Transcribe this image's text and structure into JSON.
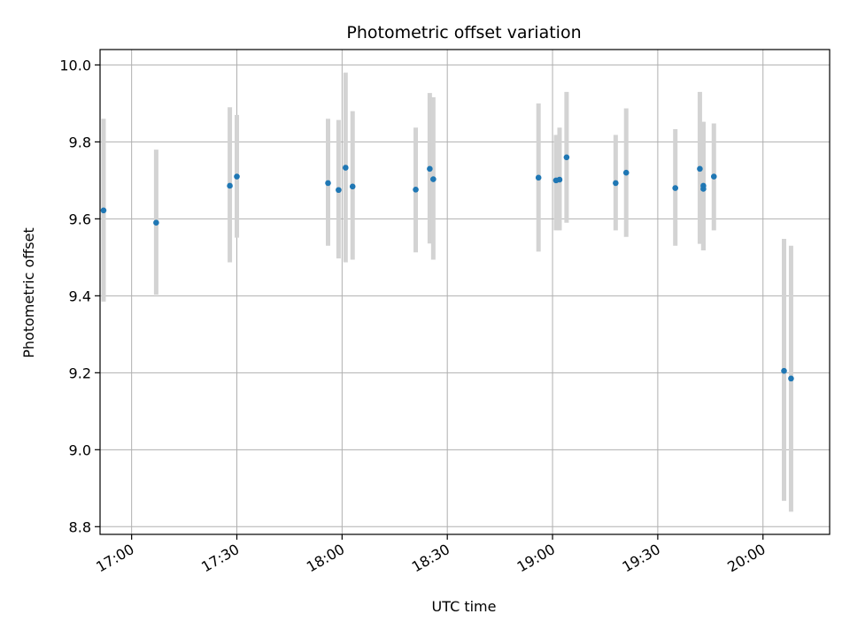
{
  "chart_data": {
    "type": "scatter",
    "title": "Photometric offset variation",
    "xlabel": "UTC time",
    "ylabel": "Photometric offset",
    "grid": true,
    "legend": "none",
    "x_ticks": [
      "17:00",
      "17:30",
      "18:00",
      "18:30",
      "19:00",
      "19:30",
      "20:00"
    ],
    "y_ticks": [
      8.8,
      9.0,
      9.2,
      9.4,
      9.6,
      9.8,
      10.0
    ],
    "xlim": [
      "16:51",
      "20:19"
    ],
    "ylim": [
      8.78,
      10.04
    ],
    "colors": {
      "point": "#1f77b4",
      "errorbar": "#d3d3d3",
      "grid": "#b0b0b0"
    },
    "points": [
      {
        "x": "16:52",
        "y": 9.622,
        "lo": 9.385,
        "hi": 9.86
      },
      {
        "x": "17:07",
        "y": 9.59,
        "lo": 9.403,
        "hi": 9.78
      },
      {
        "x": "17:28",
        "y": 9.686,
        "lo": 9.487,
        "hi": 9.89
      },
      {
        "x": "17:30",
        "y": 9.71,
        "lo": 9.551,
        "hi": 9.87
      },
      {
        "x": "17:56",
        "y": 9.693,
        "lo": 9.53,
        "hi": 9.86
      },
      {
        "x": "17:59",
        "y": 9.675,
        "lo": 9.497,
        "hi": 9.857
      },
      {
        "x": "18:01",
        "y": 9.733,
        "lo": 9.487,
        "hi": 9.98
      },
      {
        "x": "18:03",
        "y": 9.684,
        "lo": 9.494,
        "hi": 9.88
      },
      {
        "x": "18:21",
        "y": 9.676,
        "lo": 9.513,
        "hi": 9.837
      },
      {
        "x": "18:25",
        "y": 9.73,
        "lo": 9.536,
        "hi": 9.927
      },
      {
        "x": "18:26",
        "y": 9.703,
        "lo": 9.494,
        "hi": 9.916
      },
      {
        "x": "18:56",
        "y": 9.707,
        "lo": 9.515,
        "hi": 9.9
      },
      {
        "x": "19:01",
        "y": 9.7,
        "lo": 9.57,
        "hi": 9.818
      },
      {
        "x": "19:02",
        "y": 9.702,
        "lo": 9.57,
        "hi": 9.837
      },
      {
        "x": "19:04",
        "y": 9.76,
        "lo": 9.59,
        "hi": 9.93
      },
      {
        "x": "19:18",
        "y": 9.693,
        "lo": 9.57,
        "hi": 9.818
      },
      {
        "x": "19:21",
        "y": 9.72,
        "lo": 9.553,
        "hi": 9.887
      },
      {
        "x": "19:35",
        "y": 9.68,
        "lo": 9.53,
        "hi": 9.833
      },
      {
        "x": "19:42",
        "y": 9.73,
        "lo": 9.535,
        "hi": 9.93
      },
      {
        "x": "19:43",
        "y": 9.678,
        "lo": 9.518,
        "hi": 9.852
      },
      {
        "x": "19:43",
        "y": 9.686,
        "lo": 9.518,
        "hi": 9.852
      },
      {
        "x": "19:46",
        "y": 9.71,
        "lo": 9.57,
        "hi": 9.848
      },
      {
        "x": "20:06",
        "y": 9.205,
        "lo": 8.867,
        "hi": 9.548
      },
      {
        "x": "20:08",
        "y": 9.185,
        "lo": 8.839,
        "hi": 9.53
      }
    ]
  }
}
